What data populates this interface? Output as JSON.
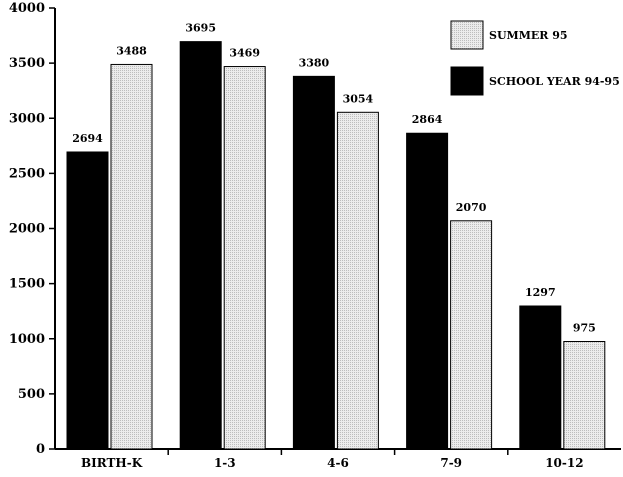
{
  "chart_data": {
    "type": "bar",
    "categories": [
      "BIRTH-K",
      "1-3",
      "4-6",
      "7-9",
      "10-12"
    ],
    "series": [
      {
        "name": "SCHOOL YEAR 94-95",
        "values": [
          2694,
          3695,
          3380,
          2864,
          1297
        ],
        "color": "#000000"
      },
      {
        "name": "SUMMER 95",
        "values": [
          3488,
          3469,
          3054,
          2070,
          975
        ],
        "color": "#e2e2e2"
      }
    ],
    "ylim": [
      0,
      4000
    ],
    "yticks": [
      0,
      500,
      1000,
      1500,
      2000,
      2500,
      3000,
      3500,
      4000
    ],
    "legend": {
      "position": "top-right",
      "order": [
        "SUMMER 95",
        "SCHOOL YEAR 94-95"
      ]
    },
    "data_labels": true,
    "grid": false,
    "title": "",
    "xlabel": "",
    "ylabel": ""
  }
}
